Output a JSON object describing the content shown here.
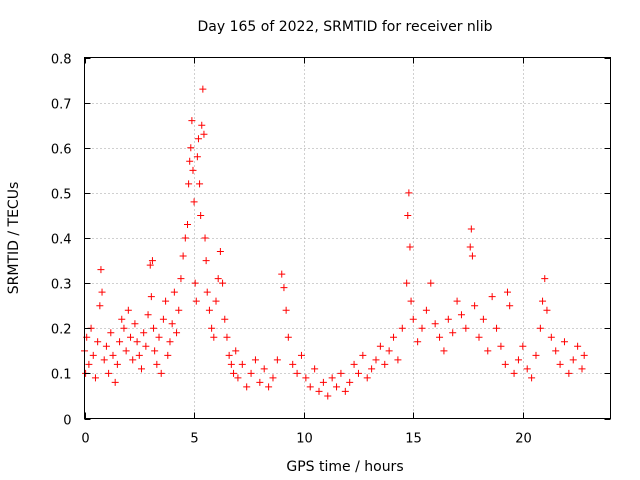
{
  "chart_data": {
    "type": "scatter",
    "title": "Day 165 of 2022, SRMTID for receiver nlib",
    "xlabel": "GPS time / hours",
    "ylabel": "SRMTID / TECUs",
    "xlim": [
      0,
      24
    ],
    "ylim": [
      0,
      0.8
    ],
    "xticks": [
      0,
      5,
      10,
      15,
      20
    ],
    "yticks": [
      0,
      0.1,
      0.2,
      0.3,
      0.4,
      0.5,
      0.6,
      0.7,
      0.8
    ],
    "xtick_labels": [
      "0",
      "5",
      "10",
      "15",
      "20"
    ],
    "ytick_labels": [
      "0",
      "0.1",
      "0.2",
      "0.3",
      "0.4",
      "0.5",
      "0.6",
      "0.7",
      "0.8"
    ],
    "grid": true,
    "marker": "+",
    "color": "#ff0000",
    "series": [
      {
        "name": "nlib",
        "x": [
          0.0,
          0.05,
          0.1,
          0.2,
          0.3,
          0.4,
          0.5,
          0.6,
          0.7,
          0.75,
          0.8,
          0.9,
          1.0,
          1.1,
          1.2,
          1.3,
          1.4,
          1.5,
          1.6,
          1.7,
          1.8,
          1.9,
          2.0,
          2.1,
          2.2,
          2.3,
          2.4,
          2.5,
          2.6,
          2.7,
          2.8,
          2.9,
          3.0,
          3.05,
          3.1,
          3.15,
          3.2,
          3.3,
          3.4,
          3.5,
          3.6,
          3.7,
          3.8,
          3.9,
          4.0,
          4.1,
          4.2,
          4.3,
          4.4,
          4.5,
          4.6,
          4.7,
          4.75,
          4.8,
          4.85,
          4.9,
          4.95,
          5.0,
          5.05,
          5.1,
          5.15,
          5.2,
          5.25,
          5.3,
          5.35,
          5.4,
          5.45,
          5.5,
          5.55,
          5.6,
          5.7,
          5.8,
          5.9,
          6.0,
          6.1,
          6.2,
          6.3,
          6.4,
          6.5,
          6.6,
          6.7,
          6.8,
          6.9,
          7.0,
          7.2,
          7.4,
          7.6,
          7.8,
          8.0,
          8.2,
          8.4,
          8.6,
          8.8,
          9.0,
          9.1,
          9.2,
          9.3,
          9.5,
          9.7,
          9.9,
          10.1,
          10.3,
          10.5,
          10.7,
          10.9,
          11.1,
          11.3,
          11.5,
          11.7,
          11.9,
          12.1,
          12.3,
          12.5,
          12.7,
          12.9,
          13.1,
          13.3,
          13.5,
          13.7,
          13.9,
          14.1,
          14.3,
          14.5,
          14.7,
          14.75,
          14.8,
          14.85,
          14.9,
          15.0,
          15.2,
          15.4,
          15.6,
          15.8,
          16.0,
          16.2,
          16.4,
          16.6,
          16.8,
          17.0,
          17.2,
          17.4,
          17.6,
          17.65,
          17.7,
          17.8,
          18.0,
          18.2,
          18.4,
          18.6,
          18.8,
          19.0,
          19.2,
          19.3,
          19.4,
          19.6,
          19.8,
          20.0,
          20.2,
          20.4,
          20.6,
          20.8,
          20.9,
          21.0,
          21.1,
          21.3,
          21.5,
          21.7,
          21.9,
          22.1,
          22.3,
          22.5,
          22.7,
          22.8
        ],
        "y": [
          0.15,
          0.1,
          0.18,
          0.12,
          0.2,
          0.14,
          0.09,
          0.17,
          0.25,
          0.33,
          0.28,
          0.13,
          0.16,
          0.1,
          0.19,
          0.14,
          0.08,
          0.12,
          0.17,
          0.22,
          0.2,
          0.15,
          0.24,
          0.18,
          0.13,
          0.21,
          0.17,
          0.14,
          0.11,
          0.19,
          0.16,
          0.23,
          0.34,
          0.27,
          0.35,
          0.2,
          0.15,
          0.12,
          0.18,
          0.1,
          0.22,
          0.26,
          0.14,
          0.17,
          0.21,
          0.28,
          0.19,
          0.24,
          0.31,
          0.36,
          0.4,
          0.43,
          0.52,
          0.57,
          0.6,
          0.66,
          0.55,
          0.48,
          0.3,
          0.26,
          0.58,
          0.62,
          0.52,
          0.45,
          0.65,
          0.73,
          0.63,
          0.4,
          0.35,
          0.28,
          0.24,
          0.2,
          0.18,
          0.26,
          0.31,
          0.37,
          0.3,
          0.22,
          0.18,
          0.14,
          0.12,
          0.1,
          0.15,
          0.09,
          0.12,
          0.07,
          0.1,
          0.13,
          0.08,
          0.11,
          0.07,
          0.09,
          0.13,
          0.32,
          0.29,
          0.24,
          0.18,
          0.12,
          0.1,
          0.14,
          0.09,
          0.07,
          0.11,
          0.06,
          0.08,
          0.05,
          0.09,
          0.07,
          0.1,
          0.06,
          0.08,
          0.12,
          0.1,
          0.14,
          0.09,
          0.11,
          0.13,
          0.16,
          0.12,
          0.15,
          0.18,
          0.13,
          0.2,
          0.3,
          0.45,
          0.5,
          0.38,
          0.26,
          0.22,
          0.17,
          0.2,
          0.24,
          0.3,
          0.21,
          0.18,
          0.15,
          0.22,
          0.19,
          0.26,
          0.23,
          0.2,
          0.38,
          0.42,
          0.36,
          0.25,
          0.18,
          0.22,
          0.15,
          0.27,
          0.2,
          0.16,
          0.12,
          0.28,
          0.25,
          0.1,
          0.13,
          0.16,
          0.11,
          0.09,
          0.14,
          0.2,
          0.26,
          0.31,
          0.24,
          0.18,
          0.15,
          0.12,
          0.17,
          0.1,
          0.13,
          0.16,
          0.11,
          0.14
        ]
      }
    ]
  }
}
